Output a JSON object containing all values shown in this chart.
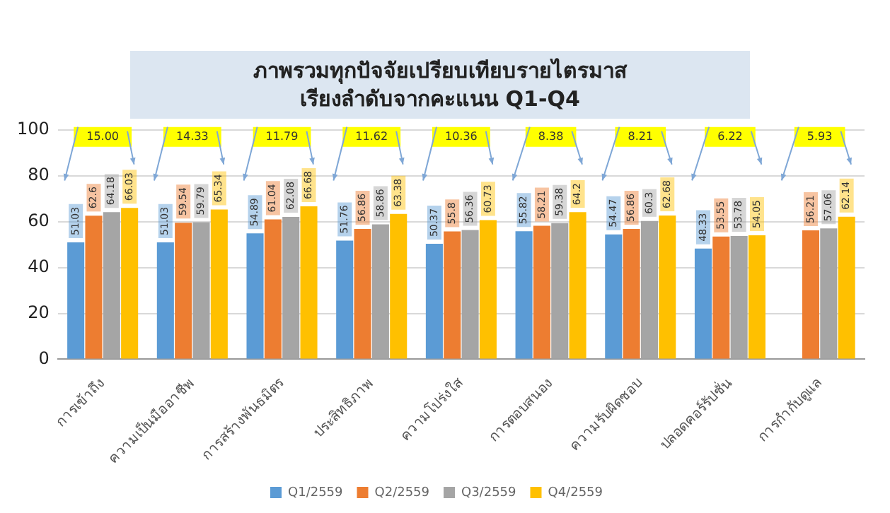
{
  "chart_data": {
    "type": "bar",
    "title": "ภาพรวมทุกปัจจัยเปรียบเทียบรายไตรมาส\nเรียงลำดับจากคะแนน Q1-Q4",
    "categories": [
      "การเข้าถึง",
      "ความเป็นมืออาชีพ",
      "การสร้างพันธมิตร",
      "ประสิทธิภาพ",
      "ความโปร่งใส",
      "การตอบสนอง",
      "ความรับผิดชอบ",
      "ปลอดคอร์รัปชั่น",
      "การกำกับดูแล"
    ],
    "series": [
      {
        "name": "Q1/2559",
        "color": "#5b9bd5",
        "values": [
          51.03,
          51.03,
          54.89,
          51.76,
          50.37,
          55.82,
          54.47,
          48.33,
          null
        ]
      },
      {
        "name": "Q2/2559",
        "color": "#ed7d31",
        "values": [
          62.6,
          59.54,
          61.04,
          56.86,
          55.8,
          58.21,
          56.86,
          53.55,
          56.21
        ]
      },
      {
        "name": "Q3/2559",
        "color": "#a5a5a5",
        "values": [
          64.18,
          59.79,
          62.08,
          58.86,
          56.36,
          59.38,
          60.3,
          53.78,
          57.06
        ]
      },
      {
        "name": "Q4/2559",
        "color": "#ffc000",
        "values": [
          66.03,
          65.34,
          66.68,
          63.38,
          60.73,
          64.2,
          62.68,
          54.05,
          62.14
        ]
      }
    ],
    "ylim": [
      0,
      100
    ],
    "yticks": [
      0,
      20,
      40,
      60,
      80,
      100
    ],
    "grid": "y",
    "legend": "bottom",
    "data_labels": true,
    "annotations": [
      "15.00",
      "14.33",
      "11.79",
      "11.62",
      "10.36",
      "8.38",
      "8.21",
      "6.22",
      "5.93"
    ]
  }
}
